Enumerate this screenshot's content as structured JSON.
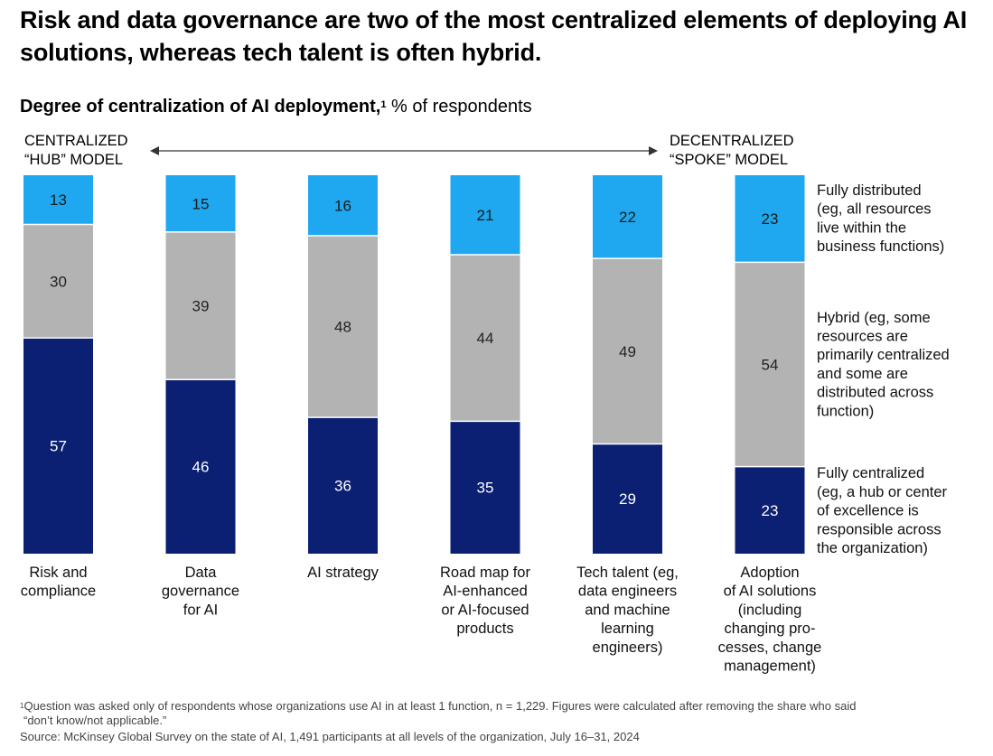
{
  "header": {
    "title": "Risk and data governance are two of the most centralized elements of deploying AI solutions, whereas tech talent is often hybrid.",
    "subtitle_bold": "Degree of centralization of AI deployment,",
    "subtitle_sup": "1",
    "subtitle_rest": " % of respondents"
  },
  "scale": {
    "left_line1": "CENTRALIZED",
    "left_line2": "“HUB” MODEL",
    "right_line1": "DECENTRALIZED",
    "right_line2": "“SPOKE” MODEL"
  },
  "chart_data": {
    "type": "bar",
    "stacked": true,
    "orientation": "vertical",
    "title": "Degree of centralization of AI deployment, % of respondents",
    "categories": [
      [
        "Risk and",
        "compliance"
      ],
      [
        "Data",
        "governance",
        "for AI"
      ],
      [
        "AI strategy"
      ],
      [
        "Road map for",
        "AI-enhanced",
        "or AI-focused",
        "products"
      ],
      [
        "Tech talent (eg,",
        "data engineers",
        "and machine",
        "learning",
        "engineers)"
      ],
      [
        "Adoption",
        "of AI solutions",
        "(including",
        "changing pro-",
        "cesses, change",
        "management)"
      ]
    ],
    "series": [
      {
        "name": "Fully centralized",
        "legend": [
          "Fully centralized",
          "(eg, a hub or center",
          "of excellence is",
          "responsible across",
          "the organization)"
        ],
        "color": "#0b1f73",
        "label_color": "#ffffff",
        "values": [
          57,
          46,
          36,
          35,
          29,
          23
        ]
      },
      {
        "name": "Hybrid",
        "legend": [
          "Hybrid (eg, some",
          "resources are",
          "primarily centralized",
          "and some are",
          "distributed across",
          "function)"
        ],
        "color": "#b3b3b3",
        "label_color": "#222222",
        "values": [
          30,
          39,
          48,
          44,
          49,
          54
        ]
      },
      {
        "name": "Fully distributed",
        "legend": [
          "Fully distributed",
          "(eg, all resources",
          "live within the",
          "business functions)"
        ],
        "color": "#1fa8f0",
        "label_color": "#1a1a1a",
        "values": [
          13,
          15,
          16,
          21,
          22,
          23
        ]
      }
    ],
    "ylim": [
      0,
      100
    ],
    "grid": false,
    "legend_position": "right"
  },
  "footnotes": {
    "note_sup": "1",
    "note_line1": "Question was asked only of respondents whose organizations use AI in at least 1 function, n = 1,229. Figures were calculated after removing the share who said",
    "note_line2": "“don’t know/not applicable.”",
    "source": "Source: McKinsey Global Survey on the state of AI, 1,491 participants at all levels of the organization, July 16–31, 2024"
  }
}
